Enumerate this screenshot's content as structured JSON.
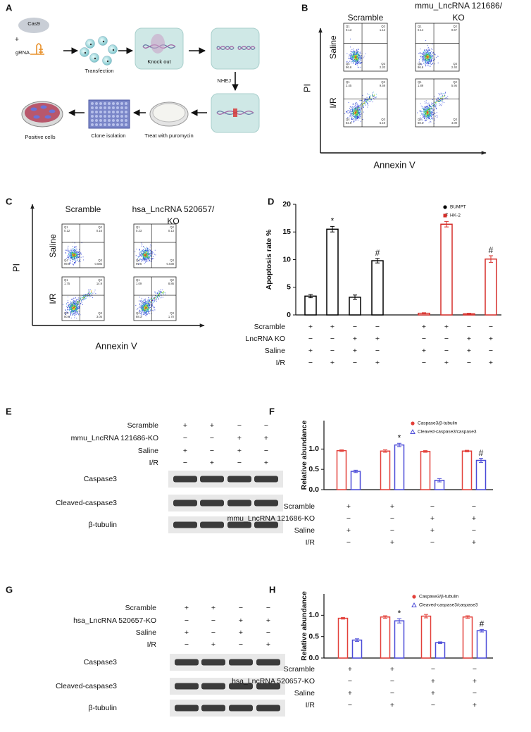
{
  "panel_labels": [
    "A",
    "B",
    "C",
    "D",
    "E",
    "F",
    "G",
    "H"
  ],
  "schematic": {
    "cas9": "Cas9",
    "plus": "+",
    "grna": "gRNA",
    "transfection": "Transfection",
    "knock_out": "Knock out",
    "nhej": "NHEJ",
    "puromycin": "Treat with puromycin",
    "clone": "Clone isolation",
    "positive": "Positive cells"
  },
  "flow": [
    {
      "col_titles": [
        [
          "Scramble"
        ],
        [
          "mmu_LncRNA 121686/",
          "KO"
        ]
      ],
      "row_titles": [
        "Saline",
        "I/R"
      ],
      "y_label": "PI",
      "x_label": "Annexin V",
      "plots": [
        [
          [
            {
              "name": "Q1",
              "value": "0.13"
            },
            {
              "name": "Q2",
              "value": "1.12"
            },
            {
              "name": "Q4",
              "value": "96.6"
            },
            {
              "name": "Q3",
              "value": "2.20"
            }
          ],
          [
            {
              "name": "Q1",
              "value": "0.14"
            },
            {
              "name": "Q2",
              "value": "0.67"
            },
            {
              "name": "Q4",
              "value": "96.6"
            },
            {
              "name": "Q3",
              "value": "2.40"
            }
          ]
        ],
        [
          [
            {
              "name": "Q1",
              "value": "2.45"
            },
            {
              "name": "Q2",
              "value": "9.59"
            },
            {
              "name": "Q4",
              "value": "82.9"
            },
            {
              "name": "Q3",
              "value": "5.19"
            }
          ],
          [
            {
              "name": "Q1",
              "value": "1.89"
            },
            {
              "name": "Q2",
              "value": "5.95"
            },
            {
              "name": "Q4",
              "value": "88.3"
            },
            {
              "name": "Q3",
              "value": "4.09"
            }
          ]
        ]
      ]
    },
    {
      "col_titles": [
        [
          "Scramble"
        ],
        [
          "hsa_LncRNA 520657/",
          "KO"
        ]
      ],
      "row_titles": [
        "Saline",
        "I/R"
      ],
      "y_label": "PI",
      "x_label": "Annexin V",
      "plots": [
        [
          [
            {
              "name": "Q1",
              "value": "0.12"
            },
            {
              "name": "Q2",
              "value": "0.16"
            },
            {
              "name": "Q4",
              "value": "99.6"
            },
            {
              "name": "Q3",
              "value": "0.085"
            }
          ],
          [
            {
              "name": "Q1",
              "value": "0.23"
            },
            {
              "name": "Q2",
              "value": "0.13"
            },
            {
              "name": "Q4",
              "value": "99.6"
            },
            {
              "name": "Q3",
              "value": "0.038"
            }
          ]
        ],
        [
          [
            {
              "name": "Q1",
              "value": "1.75"
            },
            {
              "name": "Q2",
              "value": "14.9"
            },
            {
              "name": "Q4",
              "value": "80.6"
            },
            {
              "name": "Q3",
              "value": "3.05"
            }
          ],
          [
            {
              "name": "Q1",
              "value": "1.09"
            },
            {
              "name": "Q2",
              "value": "8.86"
            },
            {
              "name": "Q4",
              "value": "88.3"
            },
            {
              "name": "Q3",
              "value": "1.70"
            }
          ]
        ]
      ]
    }
  ],
  "blots": [
    {
      "conditions": [
        {
          "label": "Scramble",
          "marks": [
            "+",
            "+",
            "−",
            "−"
          ]
        },
        {
          "label": "mmu_LncRNA 121686-KO",
          "marks": [
            "−",
            "−",
            "+",
            "+"
          ]
        },
        {
          "label": "Saline",
          "marks": [
            "+",
            "−",
            "+",
            "−"
          ]
        },
        {
          "label": "I/R",
          "marks": [
            "−",
            "+",
            "−",
            "+"
          ]
        }
      ],
      "bands": [
        "Caspase3",
        "Cleaved-caspase3",
        "β-tubulin"
      ]
    },
    {
      "conditions": [
        {
          "label": "Scramble",
          "marks": [
            "+",
            "+",
            "−",
            "−"
          ]
        },
        {
          "label": "hsa_LncRNA 520657-KO",
          "marks": [
            "−",
            "−",
            "+",
            "+"
          ]
        },
        {
          "label": "Saline",
          "marks": [
            "+",
            "−",
            "+",
            "−"
          ]
        },
        {
          "label": "I/R",
          "marks": [
            "−",
            "+",
            "−",
            "+"
          ]
        }
      ],
      "bands": [
        "Caspase3",
        "Cleaved-caspase3",
        "β-tubulin"
      ]
    }
  ],
  "chart_data": [
    {
      "type": "bar",
      "ylabel": "Apoptosis rate %",
      "ylim": [
        0,
        20
      ],
      "yticks": [
        0,
        5,
        10,
        15,
        20
      ],
      "legend": "upper right",
      "series": [
        {
          "name": "BUMPT",
          "color": "#000000",
          "marker": "circle",
          "values": [
            3.4,
            15.5,
            3.2,
            9.8
          ],
          "errors": [
            0.3,
            0.5,
            0.4,
            0.4
          ],
          "annotations": [
            null,
            "*",
            null,
            "#"
          ]
        },
        {
          "name": "HK-2",
          "color": "#d62f2a",
          "marker": "square",
          "values": [
            0.3,
            16.4,
            0.2,
            10.1
          ],
          "errors": [
            0.1,
            0.5,
            0.1,
            0.6
          ],
          "annotations": [
            null,
            "*",
            null,
            "#"
          ]
        }
      ],
      "conditions": [
        {
          "label": "Scramble",
          "marks": [
            "+",
            "+",
            "−",
            "−",
            "+",
            "+",
            "−",
            "−"
          ]
        },
        {
          "label": "LncRNA KO",
          "marks": [
            "−",
            "−",
            "+",
            "+",
            "−",
            "−",
            "+",
            "+"
          ]
        },
        {
          "label": "Saline",
          "marks": [
            "+",
            "−",
            "+",
            "−",
            "+",
            "−",
            "+",
            "−"
          ]
        },
        {
          "label": "I/R",
          "marks": [
            "−",
            "+",
            "−",
            "+",
            "−",
            "+",
            "−",
            "+"
          ]
        }
      ]
    },
    {
      "type": "bar",
      "ylabel": "Relative abundance",
      "ylim": [
        0,
        1.7
      ],
      "yticks": [
        {
          "value": 0,
          "label": "0.0"
        },
        0.5,
        {
          "value": 1,
          "label": "1.0"
        }
      ],
      "legend": "upper right",
      "series": [
        {
          "name": "Caspase3/β-tubulin",
          "color": "#e3403a",
          "marker": "circle",
          "values": [
            0.96,
            0.95,
            0.94,
            0.95
          ],
          "errors": [
            0.02,
            0.03,
            0.02,
            0.02
          ]
        },
        {
          "name": "Cleaved-caspase3/caspase3",
          "color": "#4b4bd8",
          "marker": "triangle",
          "values": [
            0.45,
            1.1,
            0.23,
            0.72
          ],
          "errors": [
            0.03,
            0.04,
            0.04,
            0.05
          ],
          "annotations": [
            null,
            "*",
            null,
            "#"
          ]
        }
      ],
      "conditions": [
        {
          "label": "Scramble",
          "marks": [
            "+",
            "+",
            "−",
            "−"
          ]
        },
        {
          "label": "mmu_LncRNA 121686-KO",
          "marks": [
            "−",
            "−",
            "+",
            "+"
          ]
        },
        {
          "label": "Saline",
          "marks": [
            "+",
            "−",
            "+",
            "−"
          ]
        },
        {
          "label": "I/R",
          "marks": [
            "−",
            "+",
            "−",
            "+"
          ]
        }
      ]
    },
    {
      "type": "bar",
      "ylabel": "Relative abundance",
      "ylim": [
        0,
        1.5
      ],
      "yticks": [
        {
          "value": 0,
          "label": "0.0"
        },
        0.5,
        {
          "value": 1,
          "label": "1.0"
        }
      ],
      "legend": "upper right",
      "series": [
        {
          "name": "Caspase3/β-tubulin",
          "color": "#e3403a",
          "marker": "circle",
          "values": [
            0.93,
            0.96,
            0.98,
            0.96
          ],
          "errors": [
            0.02,
            0.03,
            0.04,
            0.03
          ]
        },
        {
          "name": "Cleaved-caspase3/caspase3",
          "color": "#4b4bd8",
          "marker": "triangle",
          "values": [
            0.42,
            0.87,
            0.36,
            0.64
          ],
          "errors": [
            0.03,
            0.05,
            0.02,
            0.03
          ],
          "annotations": [
            null,
            "*",
            null,
            "#"
          ]
        }
      ],
      "conditions": [
        {
          "label": "Scramble",
          "marks": [
            "+",
            "+",
            "−",
            "−"
          ]
        },
        {
          "label": "hsa_LncRNA 520657-KO",
          "marks": [
            "−",
            "−",
            "+",
            "+"
          ]
        },
        {
          "label": "Saline",
          "marks": [
            "+",
            "−",
            "+",
            "−"
          ]
        },
        {
          "label": "I/R",
          "marks": [
            "−",
            "+",
            "−",
            "+"
          ]
        }
      ]
    }
  ]
}
